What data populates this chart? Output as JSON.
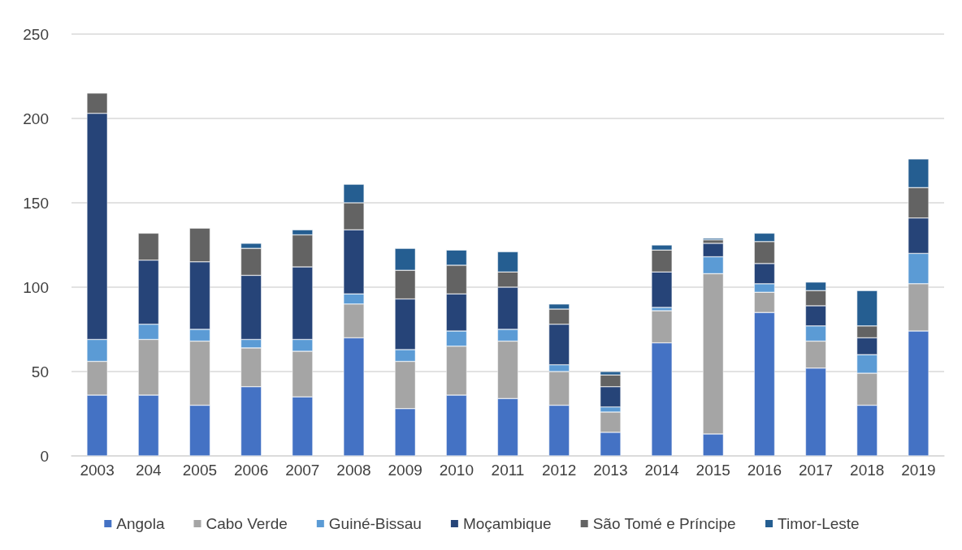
{
  "chart_data": {
    "type": "bar",
    "stacked": true,
    "categories": [
      "2003",
      "204",
      "2005",
      "2006",
      "2007",
      "2008",
      "2009",
      "2010",
      "2011",
      "2012",
      "2013",
      "2014",
      "2015",
      "2016",
      "2017",
      "2018",
      "2019"
    ],
    "series": [
      {
        "name": "Angola",
        "color": "#4472c4",
        "values": [
          36,
          36,
          30,
          41,
          35,
          70,
          28,
          36,
          34,
          30,
          14,
          67,
          13,
          85,
          52,
          30,
          74
        ]
      },
      {
        "name": "Cabo Verde",
        "color": "#a5a5a5",
        "values": [
          20,
          33,
          38,
          23,
          27,
          20,
          28,
          29,
          34,
          20,
          12,
          19,
          95,
          12,
          16,
          19,
          28
        ]
      },
      {
        "name": "Guiné-Bissau",
        "color": "#5b9bd5",
        "values": [
          13,
          9,
          7,
          5,
          7,
          6,
          7,
          9,
          7,
          4,
          3,
          2,
          10,
          5,
          9,
          11,
          18
        ]
      },
      {
        "name": "Moçambique",
        "color": "#264478",
        "values": [
          134,
          38,
          40,
          38,
          43,
          38,
          30,
          22,
          25,
          24,
          12,
          21,
          8,
          12,
          12,
          10,
          21
        ]
      },
      {
        "name": "São Tomé e Príncipe",
        "color": "#636363",
        "values": [
          12,
          16,
          20,
          16,
          19,
          16,
          17,
          17,
          9,
          9,
          7,
          13,
          2,
          13,
          9,
          7,
          18
        ]
      },
      {
        "name": "Timor-Leste",
        "color": "#255e91",
        "values": [
          null,
          null,
          null,
          3,
          3,
          11,
          13,
          9,
          12,
          3,
          2,
          3,
          1,
          5,
          5,
          21,
          17
        ]
      }
    ],
    "ylim": [
      0,
      250
    ],
    "yticks": [
      0,
      50,
      100,
      150,
      200,
      250
    ],
    "grid": "y",
    "legend": "bottom"
  }
}
